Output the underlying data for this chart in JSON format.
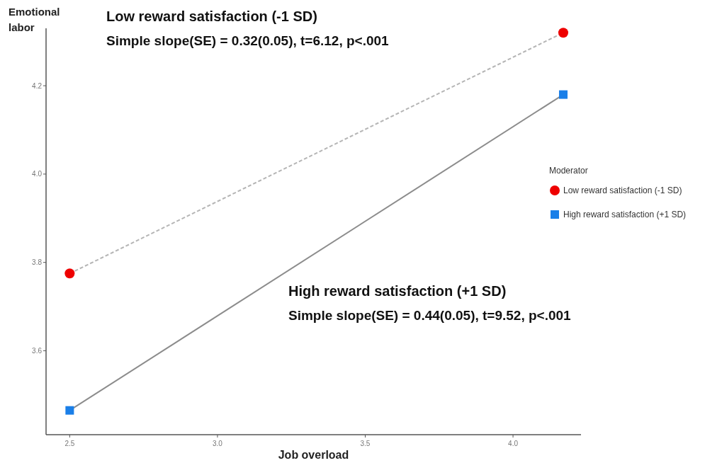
{
  "chart_data": {
    "type": "line",
    "xlabel": "Job overload",
    "ylabel": "Emotional labor",
    "legend_title": "Moderator",
    "legend": "right",
    "x": [
      2.5,
      4.17
    ],
    "xlim": [
      2.42,
      4.23
    ],
    "ylim": [
      3.41,
      4.33
    ],
    "xticks": [
      {
        "value": 2.5,
        "label": "2.5"
      },
      {
        "value": 3,
        "label": "3.0"
      },
      {
        "value": 3.5,
        "label": "3.5"
      },
      {
        "value": 4,
        "label": "4.0"
      }
    ],
    "yticks": [
      {
        "value": 3.6,
        "label": "3.6"
      },
      {
        "value": 3.8,
        "label": "3.8"
      },
      {
        "value": 4,
        "label": "4.0"
      },
      {
        "value": 4.2,
        "label": "4.2"
      }
    ],
    "grid": false,
    "series": [
      {
        "name": "Low reward satisfaction (-1 SD)",
        "color": "#ee0000",
        "marker": "circle",
        "line_style": "dashed",
        "values": [
          3.775,
          4.32
        ]
      },
      {
        "name": "High reward satisfaction (+1 SD)",
        "color": "#1a7fe8",
        "marker": "square",
        "line_style": "solid",
        "values": [
          3.465,
          4.18
        ]
      }
    ],
    "annotations": [
      "Low reward satisfaction (-1 SD)",
      "Simple slope(SE) = 0.32(0.05), t=6.12, p<.001",
      "High reward satisfaction (+1 SD)",
      "Simple slope(SE) = 0.44(0.05), t=9.52, p<.001"
    ]
  }
}
